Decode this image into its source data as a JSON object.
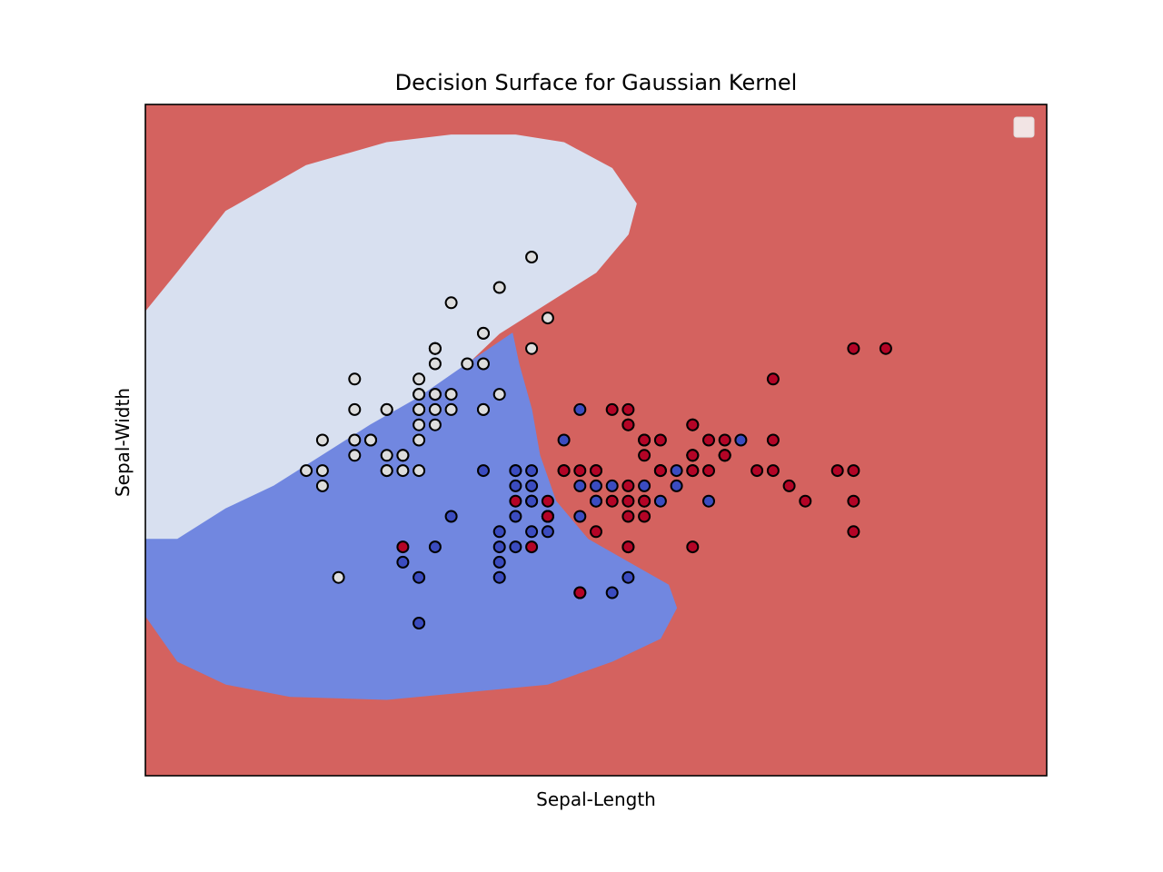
{
  "chart_data": {
    "type": "scatter",
    "title": "Decision Surface for Gaussian Kernel",
    "xlabel": "Sepal-Length",
    "ylabel": "Sepal-Width",
    "xticks": [],
    "yticks": [],
    "xlim": [
      3.3,
      8.9
    ],
    "ylim": [
      1.0,
      5.4
    ],
    "grid": false,
    "legend": {
      "placement": "upper right",
      "entries": []
    },
    "background_region": {
      "class": 2,
      "color": "#d4625f"
    },
    "regions": [
      {
        "class": 0,
        "color": "#d8e0f0",
        "outline": [
          [
            3.3,
            4.04
          ],
          [
            3.5,
            4.3
          ],
          [
            3.8,
            4.7
          ],
          [
            4.3,
            5.0
          ],
          [
            4.8,
            5.15
          ],
          [
            5.2,
            5.2
          ],
          [
            5.6,
            5.2
          ],
          [
            5.9,
            5.15
          ],
          [
            6.2,
            4.98
          ],
          [
            6.35,
            4.75
          ],
          [
            6.3,
            4.55
          ],
          [
            6.1,
            4.3
          ],
          [
            5.8,
            4.1
          ],
          [
            5.5,
            3.9
          ],
          [
            5.3,
            3.7
          ],
          [
            5.0,
            3.48
          ],
          [
            4.7,
            3.3
          ],
          [
            4.4,
            3.1
          ],
          [
            4.1,
            2.9
          ],
          [
            3.8,
            2.75
          ],
          [
            3.5,
            2.55
          ],
          [
            3.3,
            2.55
          ]
        ]
      },
      {
        "class": 1,
        "color": "#7187e0",
        "outline": [
          [
            3.3,
            2.55
          ],
          [
            3.5,
            2.55
          ],
          [
            3.8,
            2.75
          ],
          [
            4.1,
            2.9
          ],
          [
            4.4,
            3.1
          ],
          [
            4.7,
            3.3
          ],
          [
            5.0,
            3.48
          ],
          [
            5.3,
            3.7
          ],
          [
            5.58,
            3.9
          ],
          [
            5.62,
            3.7
          ],
          [
            5.7,
            3.4
          ],
          [
            5.75,
            3.1
          ],
          [
            5.85,
            2.8
          ],
          [
            6.05,
            2.55
          ],
          [
            6.3,
            2.4
          ],
          [
            6.55,
            2.25
          ],
          [
            6.6,
            2.1
          ],
          [
            6.5,
            1.9
          ],
          [
            6.2,
            1.75
          ],
          [
            5.8,
            1.6
          ],
          [
            5.3,
            1.55
          ],
          [
            4.8,
            1.5
          ],
          [
            4.2,
            1.52
          ],
          [
            3.8,
            1.6
          ],
          [
            3.5,
            1.75
          ],
          [
            3.3,
            2.05
          ],
          [
            3.3,
            2.45
          ]
        ]
      }
    ],
    "series": [
      {
        "class": 0,
        "color": "#dddddd",
        "points": [
          [
            5.1,
            3.5
          ],
          [
            4.9,
            3.0
          ],
          [
            4.7,
            3.2
          ],
          [
            4.6,
            3.1
          ],
          [
            5.0,
            3.6
          ],
          [
            5.4,
            3.9
          ],
          [
            4.6,
            3.4
          ],
          [
            5.0,
            3.4
          ],
          [
            4.4,
            2.9
          ],
          [
            4.9,
            3.1
          ],
          [
            5.4,
            3.7
          ],
          [
            4.8,
            3.4
          ],
          [
            4.8,
            3.0
          ],
          [
            4.3,
            3.0
          ],
          [
            5.8,
            4.0
          ],
          [
            5.7,
            4.4
          ],
          [
            5.4,
            3.9
          ],
          [
            5.1,
            3.5
          ],
          [
            5.7,
            3.8
          ],
          [
            5.1,
            3.8
          ],
          [
            5.4,
            3.4
          ],
          [
            5.1,
            3.7
          ],
          [
            4.6,
            3.6
          ],
          [
            5.1,
            3.3
          ],
          [
            4.8,
            3.4
          ],
          [
            5.0,
            3.0
          ],
          [
            5.0,
            3.4
          ],
          [
            5.2,
            3.5
          ],
          [
            5.2,
            3.4
          ],
          [
            4.7,
            3.2
          ],
          [
            4.8,
            3.1
          ],
          [
            5.4,
            3.4
          ],
          [
            5.2,
            4.1
          ],
          [
            5.5,
            4.2
          ],
          [
            4.9,
            3.1
          ],
          [
            5.0,
            3.2
          ],
          [
            5.5,
            3.5
          ],
          [
            4.4,
            3.0
          ],
          [
            5.1,
            3.4
          ],
          [
            5.0,
            3.5
          ],
          [
            4.5,
            2.3
          ],
          [
            4.4,
            3.2
          ],
          [
            5.0,
            3.5
          ],
          [
            5.1,
            3.8
          ],
          [
            4.8,
            3.0
          ],
          [
            5.1,
            3.8
          ],
          [
            4.6,
            3.2
          ],
          [
            5.3,
            3.7
          ],
          [
            5.0,
            3.3
          ]
        ]
      },
      {
        "class": 1,
        "color": "#3b4cc0",
        "points": [
          [
            7.0,
            3.2
          ],
          [
            6.4,
            3.2
          ],
          [
            6.9,
            3.1
          ],
          [
            5.5,
            2.3
          ],
          [
            6.5,
            2.8
          ],
          [
            5.7,
            2.8
          ],
          [
            6.3,
            3.3
          ],
          [
            4.9,
            2.4
          ],
          [
            6.6,
            2.9
          ],
          [
            5.2,
            2.7
          ],
          [
            5.0,
            2.0
          ],
          [
            5.9,
            3.0
          ],
          [
            6.0,
            2.2
          ],
          [
            6.1,
            2.9
          ],
          [
            5.6,
            2.9
          ],
          [
            6.7,
            3.1
          ],
          [
            5.6,
            3.0
          ],
          [
            5.8,
            2.7
          ],
          [
            6.2,
            2.2
          ],
          [
            5.6,
            2.5
          ],
          [
            5.9,
            3.2
          ],
          [
            6.1,
            2.8
          ],
          [
            6.3,
            2.5
          ],
          [
            6.1,
            2.8
          ],
          [
            6.4,
            2.9
          ],
          [
            6.6,
            3.0
          ],
          [
            6.8,
            2.8
          ],
          [
            6.7,
            3.0
          ],
          [
            6.0,
            2.9
          ],
          [
            5.7,
            2.6
          ],
          [
            5.5,
            2.4
          ],
          [
            5.8,
            2.7
          ],
          [
            6.0,
            2.7
          ],
          [
            5.4,
            3.0
          ],
          [
            6.0,
            3.4
          ],
          [
            6.7,
            3.1
          ],
          [
            6.3,
            2.3
          ],
          [
            5.6,
            3.0
          ],
          [
            5.5,
            2.5
          ],
          [
            5.5,
            2.6
          ],
          [
            6.1,
            3.0
          ],
          [
            5.8,
            2.6
          ],
          [
            5.0,
            2.3
          ],
          [
            5.6,
            2.7
          ],
          [
            5.7,
            3.0
          ],
          [
            5.7,
            2.9
          ],
          [
            6.2,
            2.9
          ],
          [
            5.1,
            2.5
          ],
          [
            5.7,
            2.8
          ]
        ]
      },
      {
        "class": 2,
        "color": "#b40426",
        "points": [
          [
            6.3,
            3.3
          ],
          [
            5.8,
            2.7
          ],
          [
            7.1,
            3.0
          ],
          [
            6.3,
            2.9
          ],
          [
            6.5,
            3.0
          ],
          [
            7.6,
            3.0
          ],
          [
            4.9,
            2.5
          ],
          [
            7.3,
            2.9
          ],
          [
            6.7,
            2.5
          ],
          [
            7.2,
            3.6
          ],
          [
            6.5,
            3.2
          ],
          [
            6.4,
            2.7
          ],
          [
            6.8,
            3.0
          ],
          [
            5.7,
            2.5
          ],
          [
            5.8,
            2.8
          ],
          [
            6.4,
            3.2
          ],
          [
            6.5,
            3.0
          ],
          [
            7.7,
            3.8
          ],
          [
            7.7,
            2.6
          ],
          [
            6.0,
            2.2
          ],
          [
            6.9,
            3.2
          ],
          [
            5.6,
            2.8
          ],
          [
            7.7,
            2.8
          ],
          [
            6.3,
            2.7
          ],
          [
            6.7,
            3.3
          ],
          [
            7.2,
            3.2
          ],
          [
            6.2,
            2.8
          ],
          [
            6.1,
            3.0
          ],
          [
            6.4,
            2.8
          ],
          [
            7.2,
            3.0
          ],
          [
            7.4,
            2.8
          ],
          [
            7.9,
            3.8
          ],
          [
            6.4,
            2.8
          ],
          [
            6.3,
            2.8
          ],
          [
            6.1,
            2.6
          ],
          [
            7.7,
            3.0
          ],
          [
            6.3,
            3.4
          ],
          [
            6.4,
            3.1
          ],
          [
            6.0,
            3.0
          ],
          [
            6.9,
            3.1
          ],
          [
            6.7,
            3.1
          ],
          [
            6.9,
            3.1
          ],
          [
            5.8,
            2.7
          ],
          [
            6.8,
            3.2
          ],
          [
            6.7,
            3.3
          ],
          [
            6.7,
            3.0
          ],
          [
            6.3,
            2.5
          ],
          [
            6.5,
            3.0
          ],
          [
            6.2,
            3.4
          ],
          [
            5.9,
            3.0
          ]
        ]
      }
    ]
  }
}
